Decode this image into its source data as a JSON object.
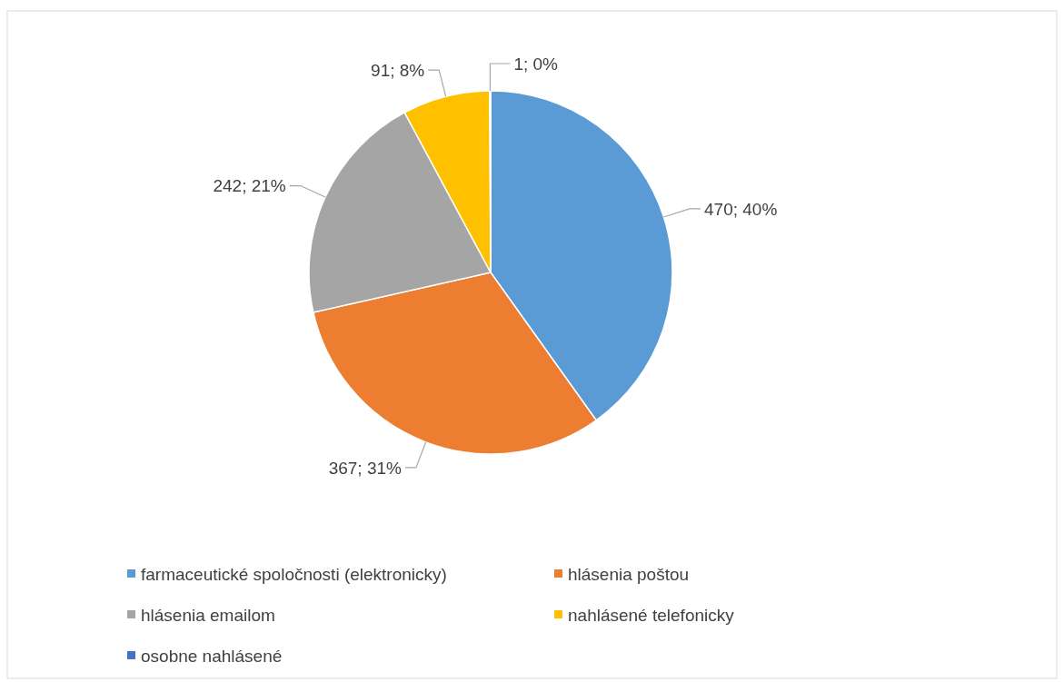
{
  "chart_data": {
    "type": "pie",
    "categories": [
      "farmaceutické spoločnosti (elektronicky)",
      "hlásenia poštou",
      "hlásenia emailom",
      "nahlásené telefonicky",
      "osobne nahlásené"
    ],
    "values": [
      470,
      367,
      242,
      91,
      1
    ],
    "colors": [
      "#5b9bd5",
      "#ed7d31",
      "#a5a5a5",
      "#ffc000",
      "#4472c4"
    ],
    "value_labels": [
      "470; 40%",
      "367; 31%",
      "242; 21%",
      "91; 8%",
      "1; 0%"
    ],
    "legend": "bottom"
  }
}
